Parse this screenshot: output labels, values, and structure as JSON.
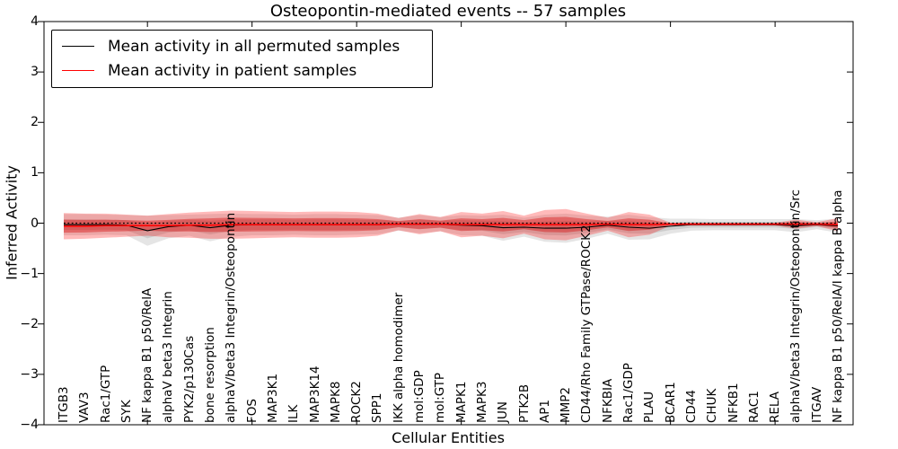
{
  "chart_data": {
    "type": "line",
    "title": "Osteopontin-mediated events -- 57 samples",
    "xlabel": "Cellular Entities",
    "ylabel": "Inferred Activity",
    "ylim": [
      -4,
      4
    ],
    "yticks": [
      4,
      3,
      2,
      1,
      0,
      -1,
      -2,
      -3,
      -4
    ],
    "grid": false,
    "legend_position": "upper left",
    "x_major_tick_indices": [
      4,
      9,
      14,
      19,
      24,
      29,
      34
    ],
    "zero_reference_line": {
      "y": 0,
      "style": "dotted",
      "color": "#000000"
    },
    "categories": [
      "ITGB3",
      "VAV3",
      "Rac1/GTP",
      "SYK",
      "NF kappa B1 p50/RelA",
      "alphaV beta3 Integrin",
      "PYK2/p130Cas",
      "bone resorption",
      "alphaV/beta3 Integrin/Osteopontin",
      "FOS",
      "MAP3K1",
      "ILK",
      "MAP3K14",
      "MAPK8",
      "ROCK2",
      "SPP1",
      "IKK alpha homodimer",
      "mol:GDP",
      "mol:GTP",
      "MAPK1",
      "MAPK3",
      "JUN",
      "PTK2B",
      "AP1",
      "MMP2",
      "CD44/Rho Family GTPase/ROCK2",
      "NFKBIA",
      "Rac1/GDP",
      "PLAU",
      "BCAR1",
      "CD44",
      "CHUK",
      "NFKB1",
      "RAC1",
      "RELA",
      "alphaV/beta3 Integrin/Osteopontin/Src",
      "ITGAV",
      "NF kappa B1 p50/RelA/I kappa B alpha"
    ],
    "series": [
      {
        "name": "Mean activity in all permuted samples",
        "color": "#000000",
        "band_color": "#000000",
        "values": [
          -0.03,
          -0.03,
          -0.03,
          -0.04,
          -0.15,
          -0.07,
          -0.04,
          -0.09,
          -0.04,
          -0.03,
          -0.03,
          -0.03,
          -0.03,
          -0.03,
          -0.03,
          -0.03,
          -0.02,
          -0.02,
          -0.02,
          -0.04,
          -0.05,
          -0.09,
          -0.08,
          -0.1,
          -0.1,
          -0.08,
          -0.04,
          -0.08,
          -0.1,
          -0.06,
          -0.03,
          -0.03,
          -0.03,
          -0.03,
          -0.03,
          -0.05,
          -0.03,
          -0.05
        ],
        "band_half_width": [
          0.21,
          0.21,
          0.2,
          0.2,
          0.3,
          0.23,
          0.21,
          0.27,
          0.23,
          0.21,
          0.21,
          0.2,
          0.21,
          0.21,
          0.2,
          0.19,
          0.13,
          0.18,
          0.14,
          0.2,
          0.2,
          0.26,
          0.19,
          0.27,
          0.29,
          0.23,
          0.17,
          0.25,
          0.22,
          0.15,
          0.12,
          0.11,
          0.11,
          0.11,
          0.11,
          0.13,
          0.09,
          0.14
        ]
      },
      {
        "name": "Mean activity in patient samples",
        "color": "#ff0000",
        "band_color": "#ff0000",
        "values": [
          -0.06,
          -0.06,
          -0.05,
          -0.05,
          -0.05,
          -0.05,
          -0.04,
          -0.04,
          -0.03,
          -0.03,
          -0.03,
          -0.03,
          -0.03,
          -0.03,
          -0.03,
          -0.03,
          -0.02,
          -0.02,
          -0.02,
          -0.03,
          -0.03,
          -0.03,
          -0.03,
          -0.03,
          -0.03,
          -0.03,
          -0.02,
          -0.03,
          -0.03,
          -0.02,
          -0.02,
          -0.02,
          -0.02,
          -0.02,
          -0.02,
          -0.02,
          -0.02,
          -0.03
        ],
        "band_half_width": [
          0.26,
          0.25,
          0.24,
          0.22,
          0.2,
          0.23,
          0.25,
          0.27,
          0.28,
          0.27,
          0.26,
          0.25,
          0.26,
          0.26,
          0.25,
          0.22,
          0.12,
          0.2,
          0.14,
          0.25,
          0.22,
          0.27,
          0.18,
          0.29,
          0.31,
          0.22,
          0.13,
          0.25,
          0.2,
          0.03,
          0.03,
          0.03,
          0.03,
          0.03,
          0.03,
          0.09,
          0.04,
          0.13
        ]
      }
    ]
  }
}
